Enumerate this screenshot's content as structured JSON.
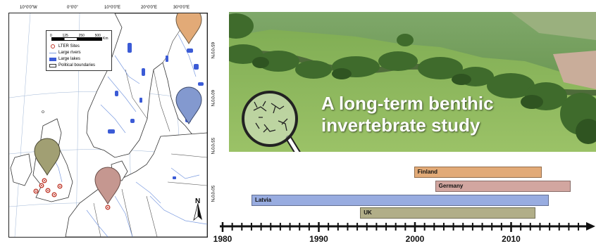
{
  "map": {
    "longitude_labels": [
      "10°0'0\"W",
      "0°0'0\"",
      "10°0'0\"E",
      "20°0'0\"E",
      "30°0'0\"E"
    ],
    "latitude_labels": [
      "65°0'0\"N",
      "60°0'0\"N",
      "55°0'0\"N",
      "50°0'0\"N"
    ],
    "scale": {
      "ticks": [
        "0",
        "125",
        "250",
        "500"
      ],
      "unit": "Km"
    },
    "legend": {
      "lter_sites": "LTER Sites",
      "large_rivers": "Large rivers",
      "large_lakes": "Large lakes",
      "political_boundaries": "Political boundaries"
    },
    "north_label": "N",
    "pin_colors": {
      "finland": "#e2aa77",
      "latvia": "#8399cf",
      "uk": "#a19f73",
      "germany": "#c59790"
    },
    "colors": {
      "lake": "#3b5bd6",
      "river": "#7b9be0",
      "land_border": "#555555",
      "site": "#c0392b"
    }
  },
  "photo": {
    "title_line1": "A long-term benthic",
    "title_line2": "invertebrate study",
    "icon": "magnifying-glass-icon"
  },
  "timeline": {
    "axis_start": 1980,
    "axis_end": 2017,
    "tick_labels": [
      "1980",
      "1990",
      "2000",
      "2010"
    ],
    "studies": [
      {
        "label": "Finland",
        "start": 1999.9,
        "end": 2013.2,
        "color": "#e2aa77"
      },
      {
        "label": "Germany",
        "start": 2002.1,
        "end": 2016.2,
        "color": "#d2a6a0"
      },
      {
        "label": "Latvia",
        "start": 1983.0,
        "end": 2013.9,
        "color": "#98ace0"
      },
      {
        "label": "UK",
        "start": 1994.3,
        "end": 2012.5,
        "color": "#b1ae88"
      }
    ]
  }
}
